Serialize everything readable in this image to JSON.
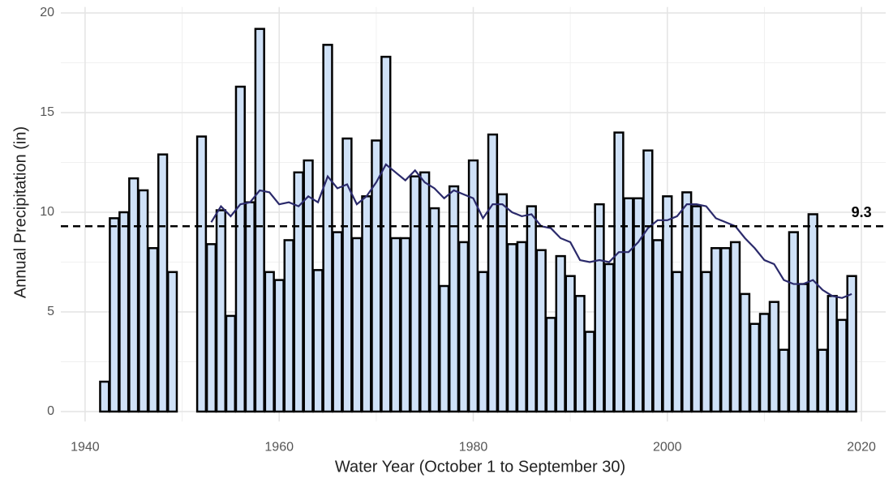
{
  "chart_data": {
    "type": "bar",
    "x_label": "Water Year (October 1 to September 30)",
    "y_label": "Annual Precipitation (in)",
    "xlim": [
      1937.5,
      2022.5
    ],
    "ylim": [
      -0.5,
      20.3
    ],
    "xticks": [
      1940,
      1960,
      1980,
      2000,
      2020
    ],
    "yticks": [
      0,
      5,
      10,
      15,
      20
    ],
    "grid": true,
    "x": [
      1942,
      1943,
      1944,
      1945,
      1946,
      1947,
      1948,
      1949,
      1952,
      1953,
      1954,
      1955,
      1956,
      1957,
      1958,
      1959,
      1960,
      1961,
      1962,
      1963,
      1964,
      1965,
      1966,
      1967,
      1968,
      1969,
      1970,
      1971,
      1972,
      1973,
      1974,
      1975,
      1976,
      1977,
      1978,
      1979,
      1980,
      1981,
      1982,
      1983,
      1984,
      1985,
      1986,
      1987,
      1988,
      1989,
      1990,
      1991,
      1992,
      1993,
      1994,
      1995,
      1996,
      1997,
      1998,
      1999,
      2000,
      2001,
      2002,
      2003,
      2004,
      2005,
      2006,
      2007,
      2008,
      2009,
      2010,
      2011,
      2012,
      2013,
      2014,
      2015,
      2016,
      2017,
      2018,
      2019
    ],
    "values": [
      1.5,
      9.7,
      10.0,
      11.7,
      11.1,
      8.2,
      12.9,
      7.0,
      13.8,
      8.4,
      10.1,
      4.8,
      16.3,
      10.5,
      19.2,
      7.0,
      6.6,
      8.6,
      12.0,
      12.6,
      7.1,
      18.4,
      9.0,
      13.7,
      8.7,
      10.8,
      13.6,
      17.8,
      8.7,
      8.7,
      11.8,
      12.0,
      10.2,
      6.3,
      11.3,
      8.5,
      12.6,
      7.0,
      13.9,
      10.9,
      8.4,
      8.5,
      10.3,
      8.1,
      4.7,
      7.8,
      6.8,
      5.8,
      4.0,
      10.4,
      7.4,
      14.0,
      10.7,
      10.7,
      13.1,
      8.6,
      10.8,
      7.0,
      11.0,
      10.3,
      7.0,
      8.2,
      8.2,
      8.5,
      5.9,
      4.4,
      4.9,
      5.5,
      3.1,
      9.0,
      6.4,
      9.9,
      3.1,
      5.8,
      4.6,
      6.8
    ],
    "color": "#cfe1f7",
    "edge_color": "#000000",
    "trend": {
      "type": "line",
      "color": "#2b2a6b",
      "x": [
        1953,
        1954,
        1955,
        1956,
        1957,
        1958,
        1959,
        1960,
        1961,
        1962,
        1963,
        1964,
        1965,
        1966,
        1967,
        1968,
        1969,
        1970,
        1971,
        1972,
        1973,
        1974,
        1975,
        1976,
        1977,
        1978,
        1979,
        1980,
        1981,
        1982,
        1983,
        1984,
        1985,
        1986,
        1987,
        1988,
        1989,
        1990,
        1991,
        1992,
        1993,
        1994,
        1995,
        1996,
        1997,
        1998,
        1999,
        2000,
        2001,
        2002,
        2003,
        2004,
        2005,
        2006,
        2007,
        2008,
        2009,
        2010,
        2011,
        2012,
        2013,
        2014,
        2015,
        2016,
        2017,
        2018,
        2019
      ],
      "values": [
        9.5,
        10.3,
        9.8,
        10.4,
        10.5,
        11.1,
        11.0,
        10.4,
        10.5,
        10.3,
        10.8,
        10.5,
        11.8,
        11.2,
        11.4,
        10.4,
        10.8,
        11.5,
        12.4,
        12.0,
        11.6,
        12.1,
        11.5,
        11.2,
        10.7,
        11.1,
        10.9,
        10.7,
        9.7,
        10.4,
        10.4,
        10.0,
        9.8,
        9.9,
        9.3,
        9.2,
        8.7,
        8.5,
        7.6,
        7.5,
        7.6,
        7.5,
        8.0,
        8.0,
        8.5,
        9.2,
        9.6,
        9.6,
        9.8,
        10.4,
        10.4,
        10.3,
        9.7,
        9.5,
        9.3,
        8.7,
        8.2,
        7.6,
        7.4,
        6.6,
        6.4,
        6.4,
        6.6,
        6.1,
        5.8,
        5.7,
        5.9
      ]
    },
    "reference_line": {
      "value": 9.3,
      "color": "#000000",
      "dashed": true
    }
  }
}
